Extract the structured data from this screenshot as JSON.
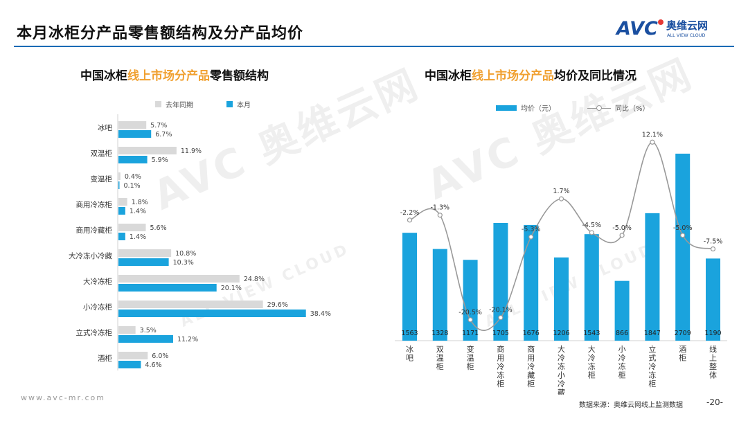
{
  "header": {
    "title": "本月冰柜分产品零售额结构及分产品均价"
  },
  "logo": {
    "mark": "AVC",
    "name_cn": "奥维云网",
    "name_en": "ALL VIEW CLOUD"
  },
  "watermarks": [
    "AVC 奥维云网",
    "ALL VIEW CLOUD"
  ],
  "footer": {
    "url": "www.avc-mr.com",
    "source": "数据来源：奥维云网线上监测数据",
    "page": "-20-"
  },
  "chart_data": [
    {
      "type": "bar",
      "orientation": "horizontal",
      "title_parts": {
        "prefix": "中国冰柜",
        "highlight": "线上市场分产品",
        "suffix": "零售额结构"
      },
      "categories": [
        "冰吧",
        "双温柜",
        "变温柜",
        "商用冷冻柜",
        "商用冷藏柜",
        "大冷冻小冷藏",
        "大冷冻柜",
        "小冷冻柜",
        "立式冷冻柜",
        "酒柜"
      ],
      "series": [
        {
          "name": "去年同期",
          "color": "#d9d9d9",
          "values": [
            5.7,
            11.9,
            0.4,
            1.8,
            5.6,
            10.8,
            24.8,
            29.6,
            3.5,
            6.0
          ],
          "labels": [
            "5.7%",
            "11.9%",
            "0.4%",
            "1.8%",
            "5.6%",
            "10.8%",
            "24.8%",
            "29.6%",
            "3.5%",
            "6.0%"
          ]
        },
        {
          "name": "本月",
          "color": "#1aa3dd",
          "values": [
            6.7,
            5.9,
            0.1,
            1.4,
            1.4,
            10.3,
            20.1,
            38.4,
            11.2,
            4.6
          ],
          "labels": [
            "6.7%",
            "5.9%",
            "0.1%",
            "1.4%",
            "1.4%",
            "10.3%",
            "20.1%",
            "38.4%",
            "11.2%",
            "4.6%"
          ]
        },
        {}
      ],
      "legend_position": "top",
      "grid": false,
      "xlim": [
        0,
        40
      ]
    },
    {
      "type": "bar+line",
      "title_parts": {
        "prefix": "中国冰柜",
        "highlight": "线上市场分产品",
        "suffix": "均价及同比情况"
      },
      "categories": [
        "冰吧",
        "双温柜",
        "变温柜",
        "商用冷冻柜",
        "商用冷藏柜",
        "大冷冻小冷藏",
        "大冷冻柜",
        "小冷冻柜",
        "立式冷冻柜",
        "酒柜",
        "线上整体"
      ],
      "series": [
        {
          "name": "均价（元）",
          "type": "bar",
          "color": "#1aa3dd",
          "values": [
            1563,
            1328,
            1171,
            1705,
            1676,
            1206,
            1543,
            866,
            1847,
            2709,
            1190
          ]
        },
        {
          "name": "同比（%）",
          "type": "line",
          "color": "#999999",
          "smooth": true,
          "values": [
            -2.2,
            -1.3,
            -20.5,
            -20.1,
            -5.3,
            1.7,
            -4.5,
            -5.0,
            12.1,
            -5.0,
            -7.5
          ],
          "labels": [
            "-2.2%",
            "-1.3%",
            "-20.5%",
            "-20.1%",
            "-5.3%",
            "1.7%",
            "-4.5%",
            "-5.0%",
            "12.1%",
            "-5.0%",
            "-7.5%"
          ]
        }
      ],
      "legend_position": "top",
      "grid": false,
      "ylim_bar": [
        0,
        3000
      ],
      "ylim_line": [
        -25,
        15
      ]
    }
  ]
}
